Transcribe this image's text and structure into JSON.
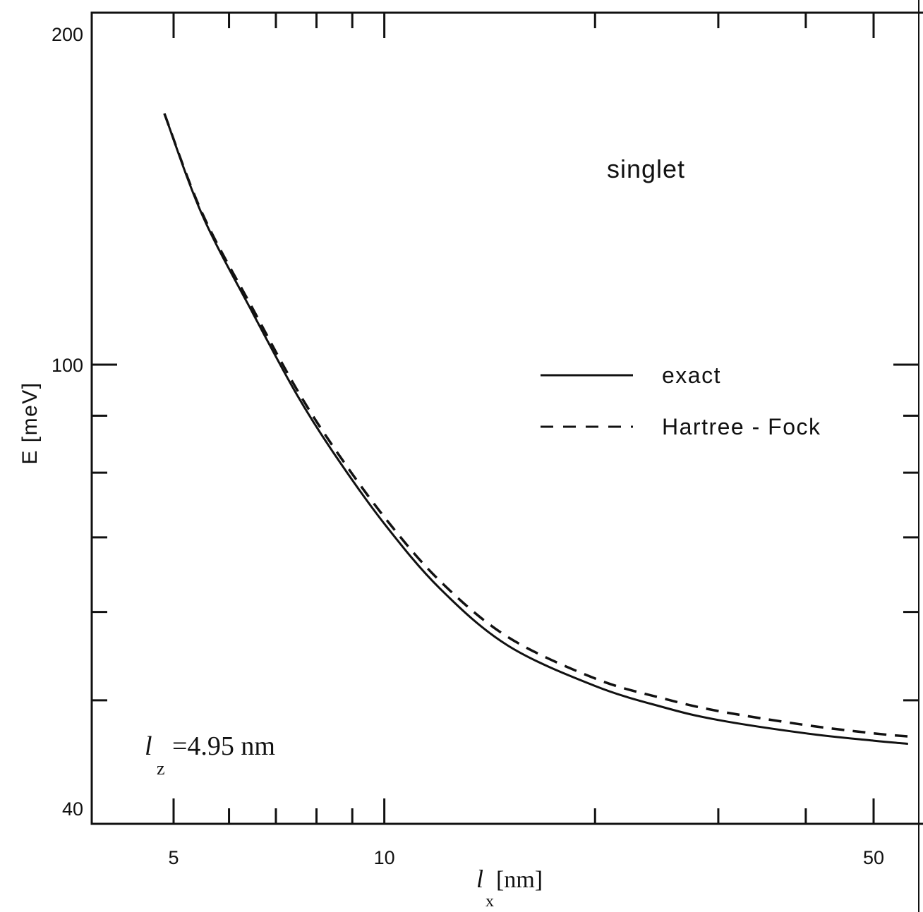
{
  "chart_data": {
    "type": "line",
    "title": "",
    "xlabel": {
      "symbol": "l",
      "subscript": "x",
      "unit": "[nm]"
    },
    "ylabel": "E [meV]",
    "xscale": "log",
    "yscale": "log",
    "xlim": [
      4.0,
      60.0
    ],
    "ylim": [
      40,
      200
    ],
    "x_ticks": [
      5,
      10,
      50
    ],
    "y_ticks": [
      40,
      100,
      200
    ],
    "annotation": "singlet",
    "parameter": {
      "symbol": "l",
      "subscript": "z",
      "value": "=4.95 nm"
    },
    "legend_position": "right",
    "series": [
      {
        "name": "exact",
        "style": "solid",
        "x": [
          4.85,
          5.5,
          6.5,
          7.5,
          8.5,
          10,
          12,
          15,
          20,
          25,
          30,
          40,
          50,
          56
        ],
        "y": [
          168,
          136,
          111,
          94,
          83,
          72,
          63,
          56,
          51.5,
          49.3,
          48,
          46.7,
          46.0,
          45.7
        ]
      },
      {
        "name": "Hartree - Fock",
        "style": "dashed",
        "x": [
          4.85,
          5.5,
          6.5,
          7.5,
          8.5,
          10,
          12,
          15,
          20,
          25,
          30,
          40,
          50,
          56
        ],
        "y": [
          168,
          136.5,
          112,
          95,
          84,
          73,
          64,
          57,
          52.3,
          50.2,
          48.9,
          47.5,
          46.7,
          46.4
        ]
      }
    ]
  }
}
